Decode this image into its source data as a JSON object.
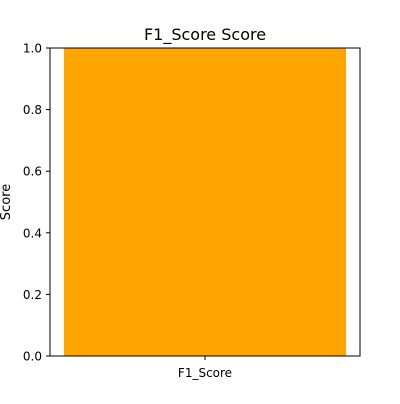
{
  "chart_data": {
    "type": "bar",
    "title": "F1_Score Score",
    "xlabel": "",
    "ylabel": "Score",
    "categories": [
      "F1_Score"
    ],
    "values": [
      1.0
    ],
    "ylim": [
      0,
      1.0
    ],
    "yticks": [
      "0.0",
      "0.2",
      "0.4",
      "0.6",
      "0.8",
      "1.0"
    ],
    "bar_color": "#ffa500",
    "grid": false,
    "legend": "none"
  }
}
